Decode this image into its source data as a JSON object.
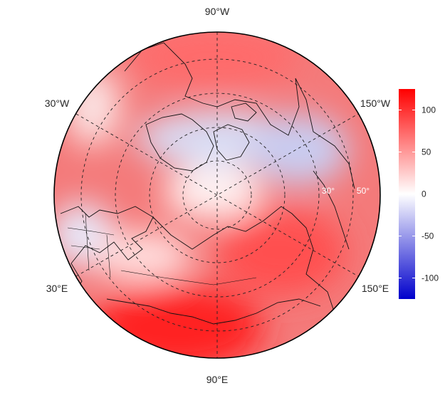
{
  "map": {
    "projection": "north polar stereographic",
    "longitude_labels": [
      "90°W",
      "30°W",
      "150°W",
      "30°E",
      "150°E",
      "90°E"
    ],
    "latitude_labels": [
      "30°",
      "50°"
    ],
    "field_pattern": {
      "positive_regions": [
        "southern/central Asia (max > 100)",
        "North Pacific / East Asia",
        "North Atlantic / North America",
        "Arctic Ocean near Siberia"
      ],
      "negative_regions": [
        "Canadian Arctic / Greenland",
        "Alaska / Bering region",
        "Europe (weak)"
      ]
    }
  },
  "colorbar": {
    "min": -125,
    "max": 125,
    "ticks": [
      "100",
      "50",
      "0",
      "-50",
      "-100"
    ],
    "tick_values": [
      100,
      50,
      0,
      -50,
      -100
    ],
    "colors": {
      "low": "#0000cc",
      "mid": "#ffffff",
      "high": "#ff0000"
    }
  }
}
